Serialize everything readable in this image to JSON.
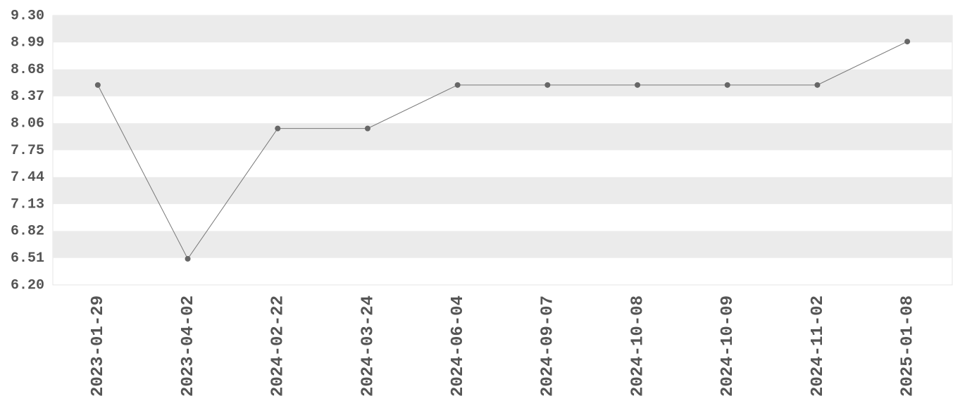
{
  "chart_data": {
    "type": "line",
    "categories": [
      "2023-01-29",
      "2023-04-02",
      "2024-02-22",
      "2024-03-24",
      "2024-06-04",
      "2024-09-07",
      "2024-10-08",
      "2024-10-09",
      "2024-11-02",
      "2025-01-08"
    ],
    "values": [
      8.5,
      6.5,
      8.0,
      8.0,
      8.5,
      8.5,
      8.5,
      8.5,
      8.5,
      9.0
    ],
    "color": "#777777",
    "marker_color": "#666666",
    "ylim": [
      6.2,
      9.3
    ],
    "yticks": [
      {
        "value": 9.3,
        "label": "9.30"
      },
      8.99,
      8.68,
      8.37,
      8.06,
      7.75,
      7.44,
      7.13,
      6.82,
      6.51,
      {
        "value": 6.2,
        "label": "6.20"
      }
    ],
    "band_color": "#ebebeb",
    "grid": true
  }
}
